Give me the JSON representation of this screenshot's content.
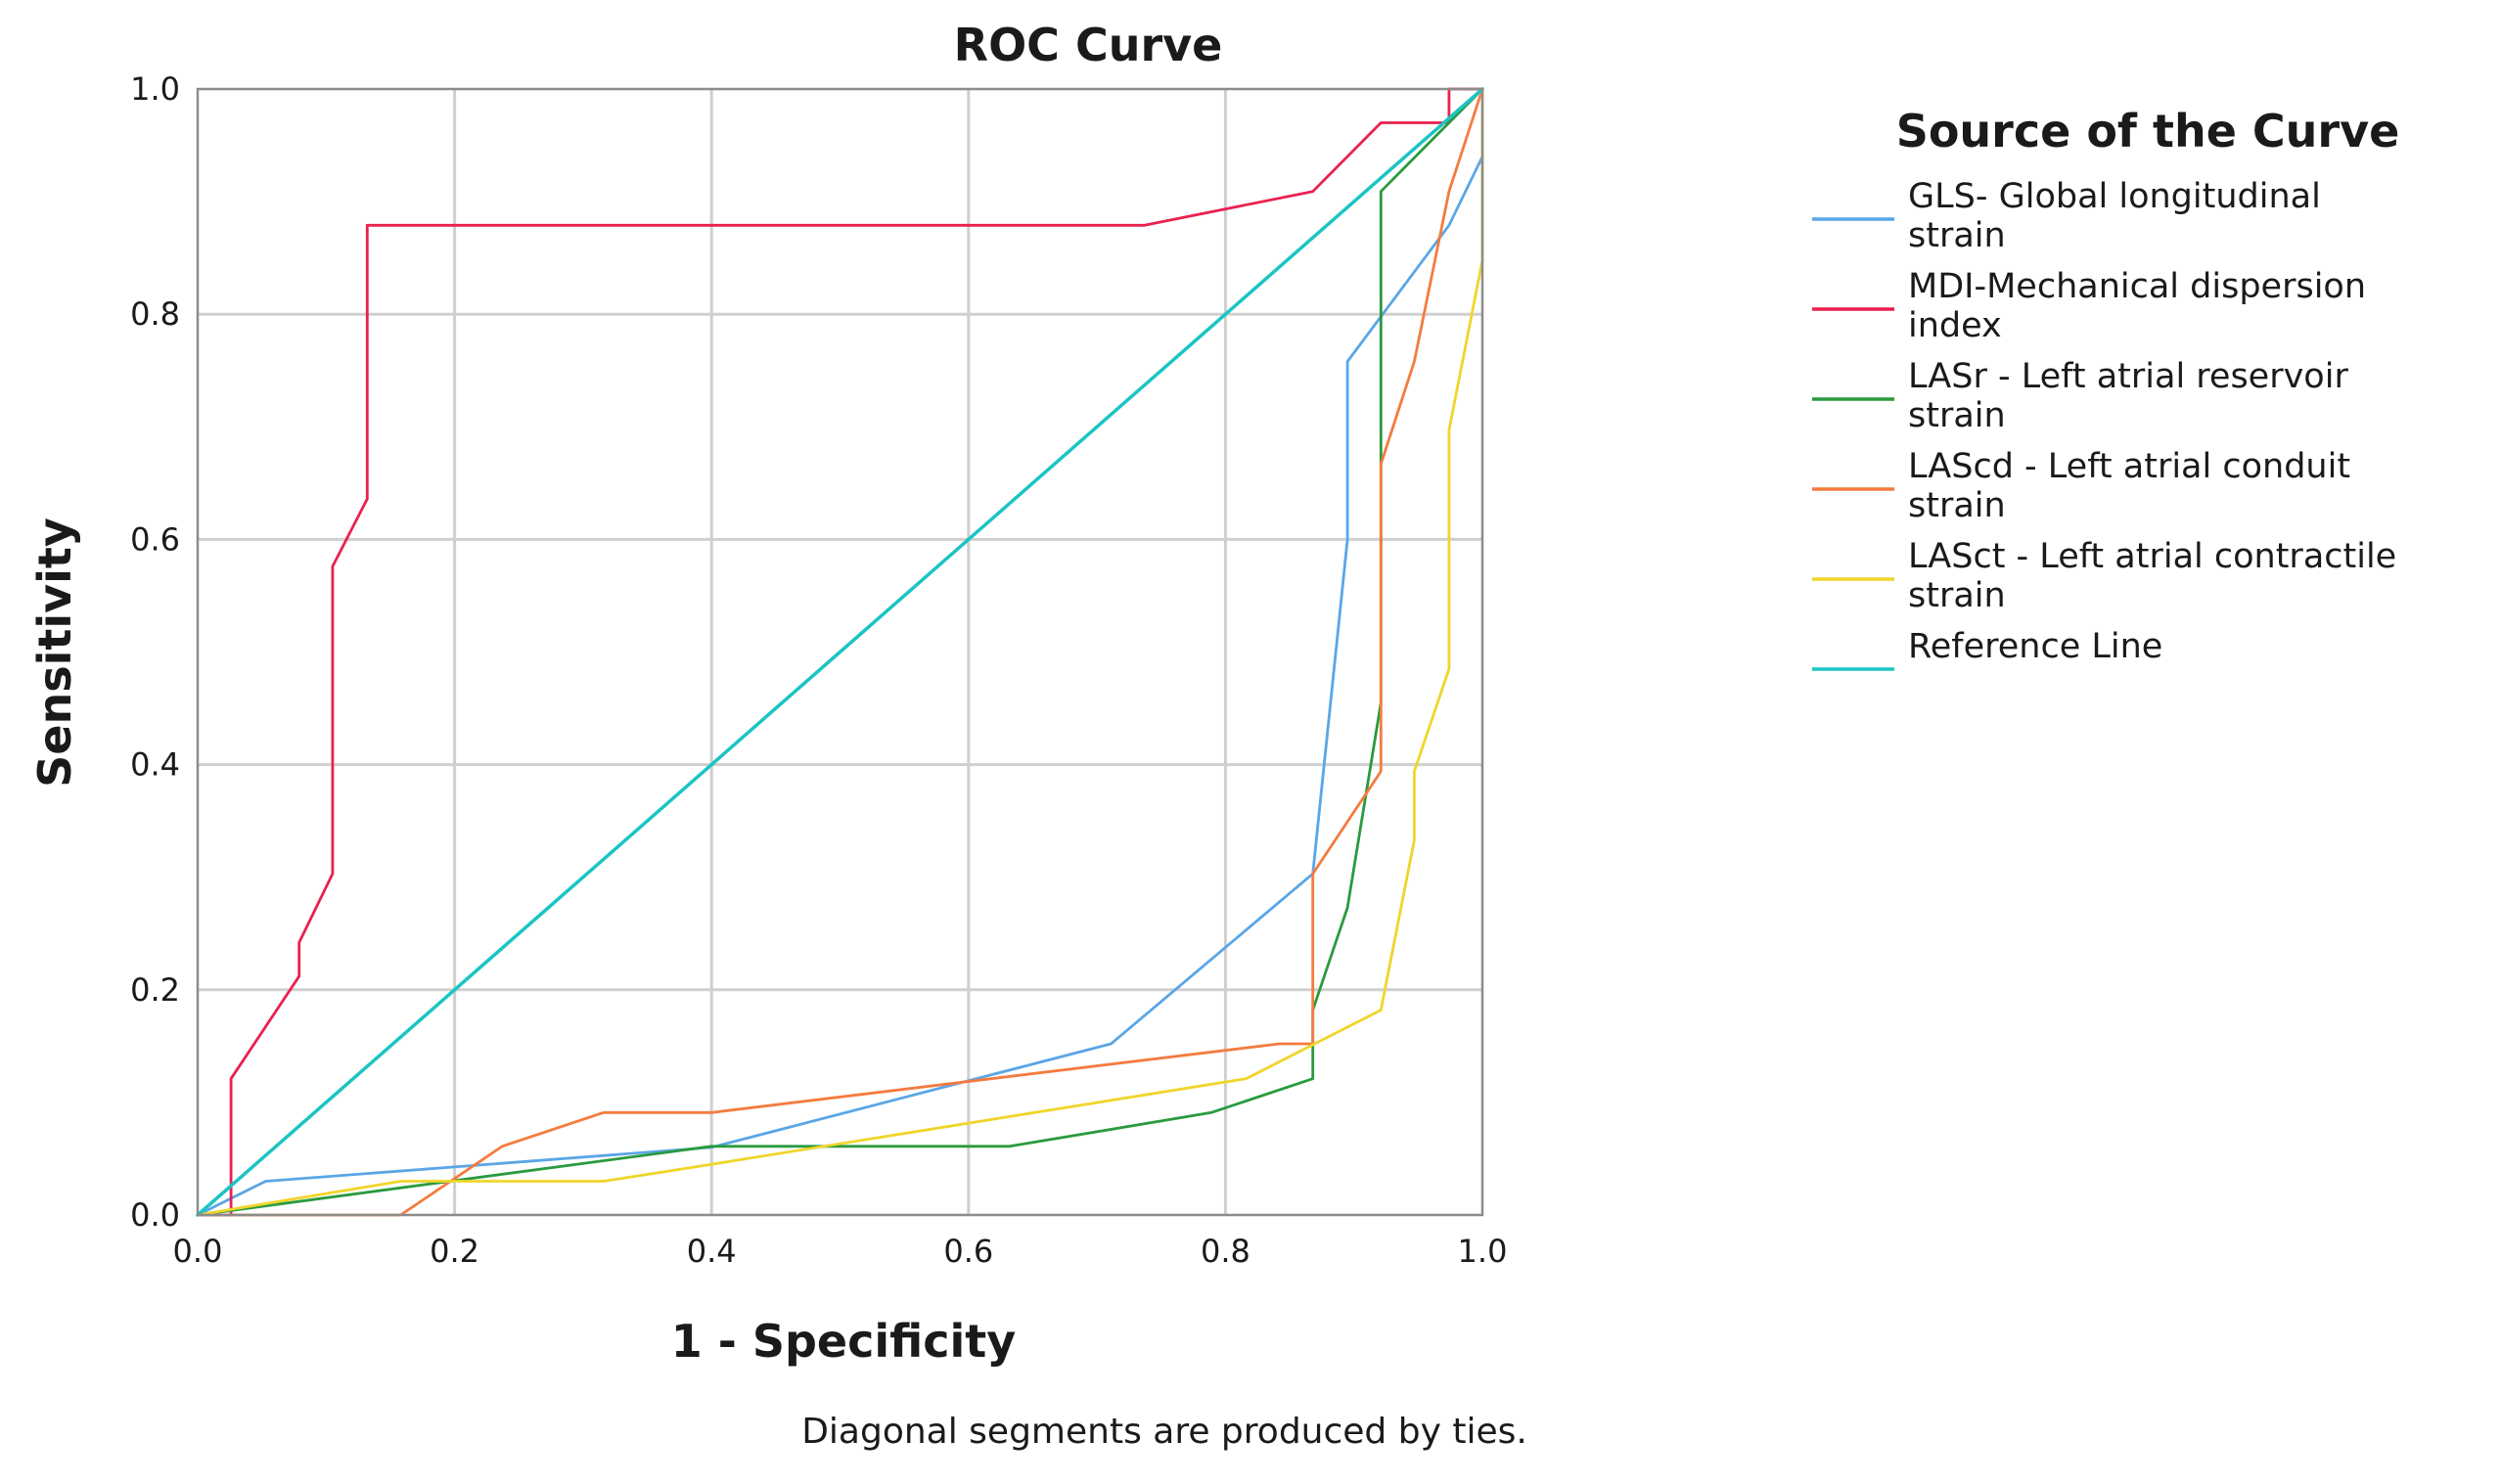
{
  "chart_data": {
    "type": "line",
    "title": "ROC Curve",
    "xlabel": "1 - Specificity",
    "ylabel": "Sensitivity",
    "xlim": [
      0,
      1
    ],
    "ylim": [
      0,
      1
    ],
    "x_ticks": [
      "0.0",
      "0.2",
      "0.4",
      "0.6",
      "0.8",
      "1.0"
    ],
    "y_ticks": [
      "0.0",
      "0.2",
      "0.4",
      "0.6",
      "0.8",
      "1.0"
    ],
    "grid": true,
    "footnote": "Diagonal segments are produced by ties.",
    "legend": {
      "title": "Source of the Curve",
      "placement": "right"
    },
    "series": [
      {
        "name": "GLS- Global longitudinal strain",
        "label_lines": [
          "GLS- Global longitudinal",
          "strain"
        ],
        "color": "#5aa6e6",
        "points": [
          [
            0,
            0
          ],
          [
            0.053,
            0.03
          ],
          [
            0.4,
            0.06
          ],
          [
            0.711,
            0.152
          ],
          [
            0.868,
            0.303
          ],
          [
            0.895,
            0.6
          ],
          [
            0.895,
            0.758
          ],
          [
            0.974,
            0.879
          ],
          [
            1,
            0.94
          ]
        ]
      },
      {
        "name": "MDI-Mechanical dispersion index",
        "label_lines": [
          "MDI-Mechanical dispersion",
          "index"
        ],
        "color": "#e8214f",
        "points": [
          [
            0,
            0
          ],
          [
            0.026,
            0
          ],
          [
            0.026,
            0.121
          ],
          [
            0.079,
            0.212
          ],
          [
            0.079,
            0.242
          ],
          [
            0.105,
            0.303
          ],
          [
            0.105,
            0.576
          ],
          [
            0.132,
            0.636
          ],
          [
            0.132,
            0.879
          ],
          [
            0.737,
            0.879
          ],
          [
            0.868,
            0.909
          ],
          [
            0.921,
            0.97
          ],
          [
            0.974,
            0.97
          ],
          [
            0.974,
            1
          ],
          [
            1,
            1
          ]
        ]
      },
      {
        "name": "LASr - Left atrial reservoir strain",
        "label_lines": [
          "LASr - Left atrial reservoir",
          "strain"
        ],
        "color": "#2a9a3f",
        "points": [
          [
            0,
            0
          ],
          [
            0.4,
            0.061
          ],
          [
            0.632,
            0.061
          ],
          [
            0.789,
            0.091
          ],
          [
            0.868,
            0.121
          ],
          [
            0.868,
            0.182
          ],
          [
            0.895,
            0.273
          ],
          [
            0.921,
            0.455
          ],
          [
            0.921,
            0.909
          ],
          [
            1,
            1
          ]
        ]
      },
      {
        "name": "LAScd - Left atrial conduit strain",
        "label_lines": [
          "LAScd - Left atrial conduit",
          "strain"
        ],
        "color": "#f47b3f",
        "points": [
          [
            0,
            0
          ],
          [
            0.158,
            0
          ],
          [
            0.237,
            0.061
          ],
          [
            0.316,
            0.091
          ],
          [
            0.4,
            0.091
          ],
          [
            0.842,
            0.152
          ],
          [
            0.868,
            0.152
          ],
          [
            0.868,
            0.303
          ],
          [
            0.921,
            0.394
          ],
          [
            0.921,
            0.667
          ],
          [
            0.947,
            0.758
          ],
          [
            0.974,
            0.909
          ],
          [
            1,
            1
          ]
        ]
      },
      {
        "name": "LASct - Left atrial contractile strain",
        "label_lines": [
          "LASct - Left atrial contractile",
          "strain"
        ],
        "color": "#f0d52b",
        "points": [
          [
            0,
            0
          ],
          [
            0.158,
            0.03
          ],
          [
            0.316,
            0.03
          ],
          [
            0.4,
            0.045
          ],
          [
            0.816,
            0.121
          ],
          [
            0.921,
            0.182
          ],
          [
            0.947,
            0.333
          ],
          [
            0.947,
            0.394
          ],
          [
            0.974,
            0.485
          ],
          [
            0.974,
            0.697
          ],
          [
            1,
            0.848
          ],
          [
            1,
            1
          ]
        ]
      },
      {
        "name": "Reference Line",
        "label_lines": [
          "Reference Line"
        ],
        "color": "#1cc4c4",
        "points": [
          [
            0,
            0
          ],
          [
            1,
            1
          ]
        ]
      }
    ]
  }
}
